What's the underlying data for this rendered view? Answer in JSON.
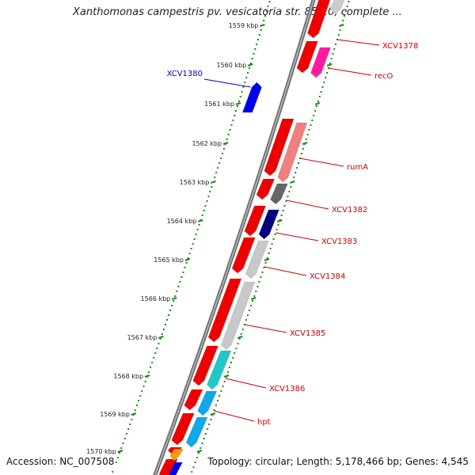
{
  "title": "Xanthomonas campestris pv. vesicatoria str. 85-10, complete ...",
  "footer": {
    "accession": "Accession: NC_007508",
    "summary": "Topology: circular; Length: 5,178,466 bp; Genes: 4,545"
  },
  "colors": {
    "backbone": "#888888",
    "tick": "#1a8a1a",
    "forward_label": "#0000cc",
    "reverse_label": "#cc0000"
  },
  "kbp_ticks": [
    "1559 kbp",
    "1560 kbp",
    "1561 kbp",
    "1562 kbp",
    "1563 kbp",
    "1564 kbp",
    "1565 kbp",
    "1566 kbp",
    "1567 kbp",
    "1568 kbp",
    "1569 kbp",
    "1570 kbp"
  ],
  "forward_genes": [
    {
      "label": "XCV1380",
      "color": "#0000ee"
    }
  ],
  "reverse_genes": [
    {
      "label": "XCV1378",
      "color": "#cccccc"
    },
    {
      "label": "recO",
      "color": "#ff1aa0"
    },
    {
      "label": "rumA",
      "color": "#f08080"
    },
    {
      "label": "XCV1382",
      "color": "#666666"
    },
    {
      "label": "XCV1383",
      "color": "#000080"
    },
    {
      "label": "XCV1384",
      "color": "#c8c8c8"
    },
    {
      "label": "XCV1385",
      "color": "#c8c8c8"
    },
    {
      "label": "XCV1386",
      "color": "#20c8c8"
    },
    {
      "label": "hpt",
      "color": "#10a8e8"
    }
  ]
}
